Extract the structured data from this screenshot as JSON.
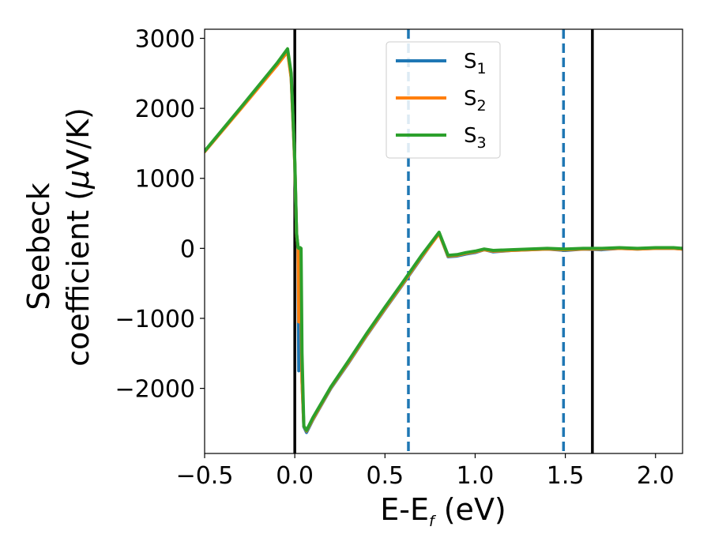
{
  "chart_data": {
    "type": "line",
    "xlabel": {
      "main": "E-E",
      "sub": "f",
      "tail": " (eV)"
    },
    "ylabel": {
      "line1": "Seebeck",
      "line2_pre": "coefficient  (",
      "mu": "μ",
      "line2_post": "V/K)"
    },
    "xlim": [
      -0.5,
      2.15
    ],
    "ylim": [
      -2930,
      3130
    ],
    "x_ticks": [
      -0.5,
      0.0,
      0.5,
      1.0,
      1.5,
      2.0
    ],
    "x_tick_labels": [
      "−0.5",
      "0.0",
      "0.5",
      "1.0",
      "1.5",
      "2.0"
    ],
    "y_ticks": [
      -2000,
      -1000,
      0,
      1000,
      2000,
      3000
    ],
    "y_tick_labels": [
      "−2000",
      "−1000",
      "0",
      "1000",
      "2000",
      "3000"
    ],
    "grid": false,
    "legend_position": "top-center",
    "vlines": [
      {
        "x": 0.0,
        "style": "solid",
        "color": "#000000"
      },
      {
        "x": 1.65,
        "style": "solid",
        "color": "#000000"
      },
      {
        "x": 0.63,
        "style": "dashed",
        "color": "#1f77b4"
      },
      {
        "x": 1.49,
        "style": "dashed",
        "color": "#1f77b4"
      }
    ],
    "series": [
      {
        "name": "S",
        "sub": "1",
        "color": "#1f77b4",
        "x": [
          -0.5,
          -0.3,
          -0.1,
          -0.04,
          -0.02,
          0.0,
          0.01,
          0.018,
          0.022,
          0.026,
          0.03,
          0.04,
          0.05,
          0.065,
          0.1,
          0.2,
          0.3,
          0.4,
          0.5,
          0.6,
          0.7,
          0.8,
          0.85,
          0.9,
          0.95,
          1.0,
          1.05,
          1.1,
          1.2,
          1.3,
          1.4,
          1.5,
          1.6,
          1.7,
          1.8,
          1.9,
          2.0,
          2.1,
          2.15
        ],
        "y": [
          1380,
          2000,
          2630,
          2830,
          2450,
          1200,
          200,
          0,
          -1750,
          -1200,
          0,
          -1900,
          -2550,
          -2630,
          -2450,
          -2000,
          -1630,
          -1240,
          -870,
          -510,
          -140,
          220,
          -120,
          -110,
          -80,
          -60,
          -20,
          -50,
          -30,
          -20,
          -10,
          -30,
          -10,
          -20,
          0,
          -10,
          0,
          0,
          -10
        ]
      },
      {
        "name": "S",
        "sub": "2",
        "color": "#ff7f0e",
        "x": [
          -0.5,
          -0.3,
          -0.1,
          -0.04,
          -0.02,
          0.0,
          0.01,
          0.018,
          0.022,
          0.026,
          0.03,
          0.04,
          0.05,
          0.065,
          0.1,
          0.2,
          0.3,
          0.4,
          0.5,
          0.6,
          0.7,
          0.8,
          0.85,
          0.9,
          0.95,
          1.0,
          1.05,
          1.1,
          1.2,
          1.3,
          1.4,
          1.5,
          1.6,
          1.7,
          1.8,
          1.9,
          2.0,
          2.1,
          2.15
        ],
        "y": [
          1380,
          1990,
          2610,
          2810,
          2430,
          1200,
          200,
          0,
          -1050,
          -900,
          0,
          -1900,
          -2540,
          -2610,
          -2440,
          -1990,
          -1620,
          -1230,
          -860,
          -500,
          -130,
          210,
          -110,
          -100,
          -70,
          -50,
          -20,
          -40,
          -30,
          -20,
          -10,
          -20,
          -10,
          -10,
          0,
          -10,
          0,
          0,
          -10
        ]
      },
      {
        "name": "S",
        "sub": "3",
        "color": "#2ca02c",
        "x": [
          -0.5,
          -0.3,
          -0.1,
          -0.04,
          -0.02,
          0.0,
          0.01,
          0.018,
          0.022,
          0.026,
          0.03,
          0.035,
          0.04,
          0.05,
          0.065,
          0.1,
          0.2,
          0.3,
          0.4,
          0.5,
          0.6,
          0.7,
          0.8,
          0.85,
          0.9,
          0.95,
          1.0,
          1.05,
          1.1,
          1.2,
          1.3,
          1.4,
          1.5,
          1.6,
          1.7,
          1.8,
          1.9,
          2.0,
          2.1,
          2.15
        ],
        "y": [
          1390,
          2010,
          2640,
          2850,
          2500,
          1250,
          220,
          10,
          0,
          0,
          10,
          0,
          -1500,
          -2540,
          -2600,
          -2420,
          -1980,
          -1600,
          -1210,
          -840,
          -480,
          -110,
          230,
          -100,
          -90,
          -60,
          -40,
          -10,
          -30,
          -20,
          -10,
          0,
          -10,
          0,
          0,
          10,
          0,
          10,
          10,
          0
        ]
      }
    ]
  }
}
